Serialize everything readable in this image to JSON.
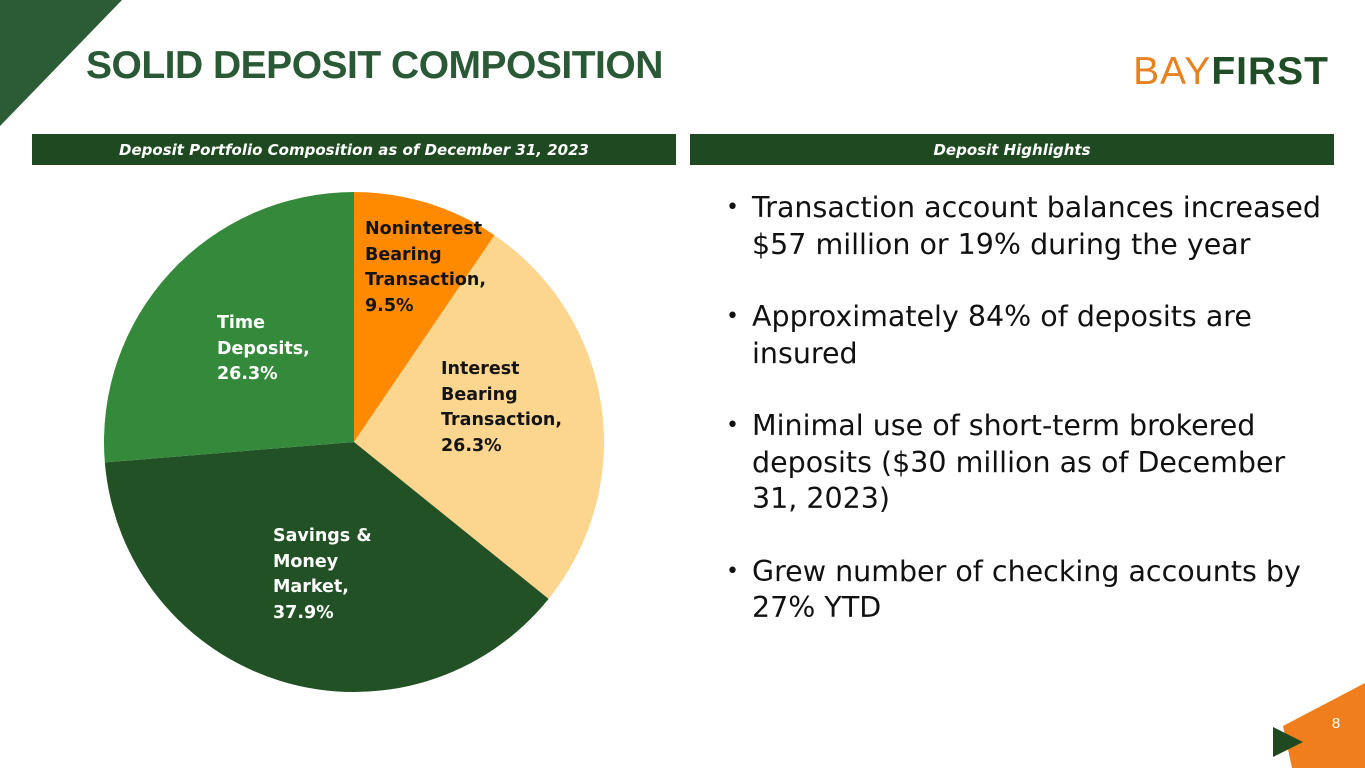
{
  "slide": {
    "title": "SOLID DEPOSIT COMPOSITION",
    "page_number": "8",
    "colors": {
      "title": "#2a5a35",
      "band": "#1f4a21",
      "accent_orange": "#f07e1c",
      "accent_green": "#2c5c36"
    }
  },
  "logo": {
    "part1": "BAY",
    "part2": "FIRST"
  },
  "left_panel": {
    "header": "Deposit Portfolio Composition as of December 31, 2023"
  },
  "right_panel": {
    "header": "Deposit Highlights",
    "bullets": [
      "Transaction account balances increased $57 million or 19% during the year",
      "Approximately 84% of deposits are insured",
      "Minimal use of short-term brokered deposits ($30 million as of December 31, 2023)",
      "Grew number of checking accounts by 27% YTD"
    ]
  },
  "chart_data": {
    "type": "pie",
    "title": "",
    "slices": [
      {
        "label": "Noninterest Bearing Transaction",
        "display": "Noninterest\nBearing\nTransaction,\n9.5%",
        "value": 9.5,
        "color": "#ff8a00"
      },
      {
        "label": "Interest Bearing Transaction",
        "display": "Interest\nBearing\nTransaction,\n26.3%",
        "value": 26.3,
        "color": "#fcd68f"
      },
      {
        "label": "Savings & Money Market",
        "display": "Savings &\nMoney\nMarket,\n37.9%",
        "value": 37.9,
        "color": "#215124"
      },
      {
        "label": "Time Deposits",
        "display": "Time\nDeposits,\n26.3%",
        "value": 26.3,
        "color": "#348a3a"
      }
    ]
  }
}
